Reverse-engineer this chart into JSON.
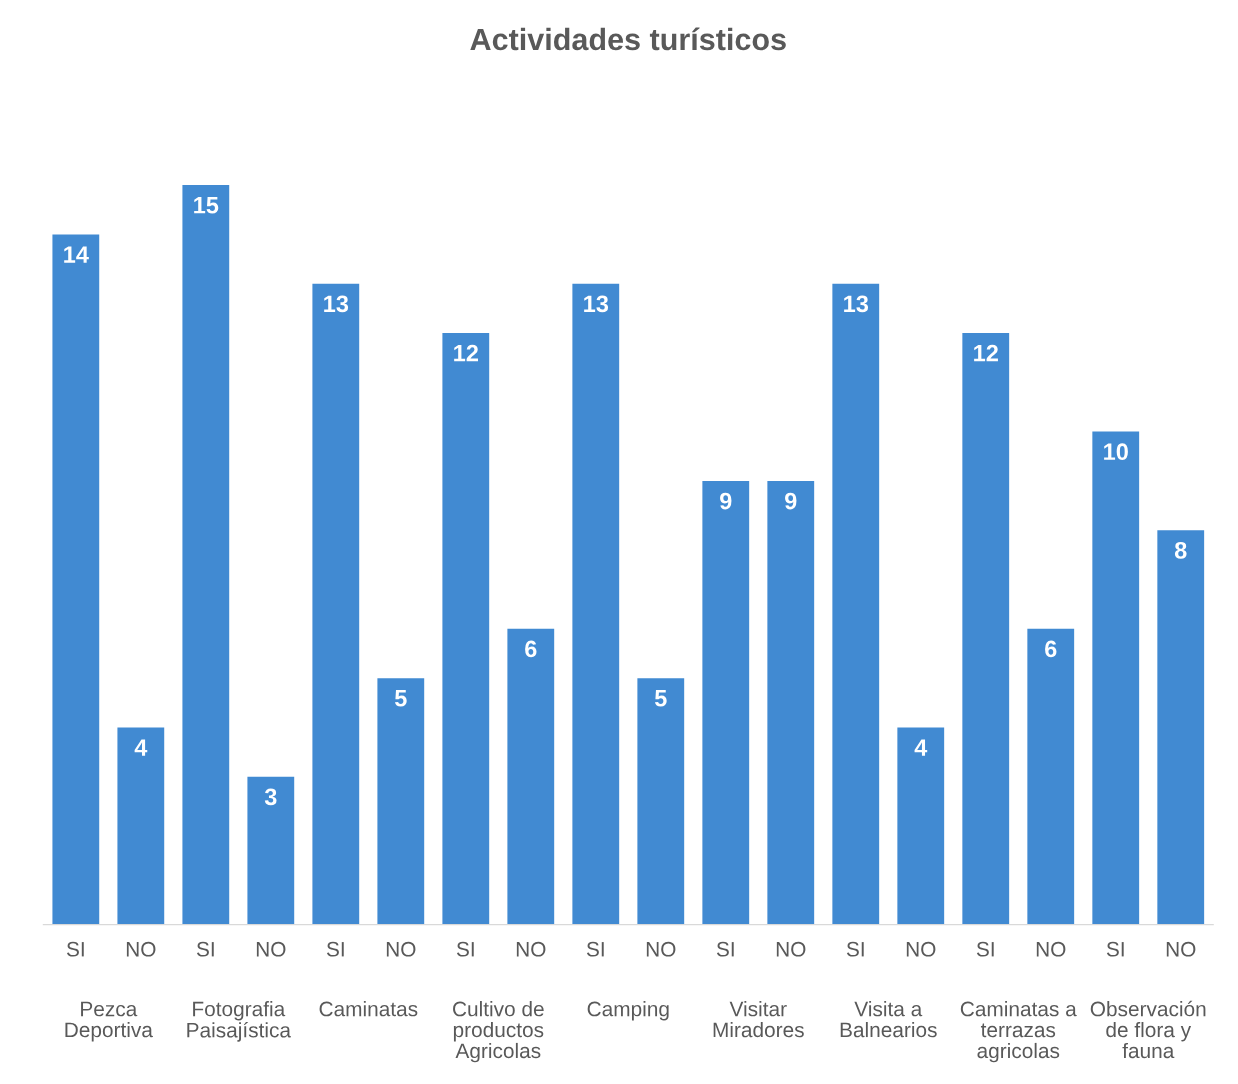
{
  "chart_data": {
    "type": "bar",
    "title": "Actividades turísticos",
    "categories": [
      "SI",
      "NO",
      "SI",
      "NO",
      "SI",
      "NO",
      "SI",
      "NO",
      "SI",
      "NO",
      "SI",
      "NO",
      "SI",
      "NO",
      "SI",
      "NO",
      "SI",
      "NO"
    ],
    "values": [
      14,
      4,
      15,
      3,
      13,
      5,
      12,
      6,
      13,
      5,
      9,
      9,
      13,
      4,
      12,
      6,
      10,
      8
    ],
    "color": "#418ad2",
    "data_labels": true,
    "grid": false,
    "annotations": [
      "Pezca\nDeportiva",
      "Fotografia\nPaisajística",
      "Caminatas",
      "Cultivo de\nproductos\nAgricolas",
      "Camping",
      "Visitar\nMiradores",
      "Visita a\nBalnearios",
      "Caminatas a\nterrazas\nagricolas",
      "Observación\nde flora y\nfauna"
    ]
  }
}
